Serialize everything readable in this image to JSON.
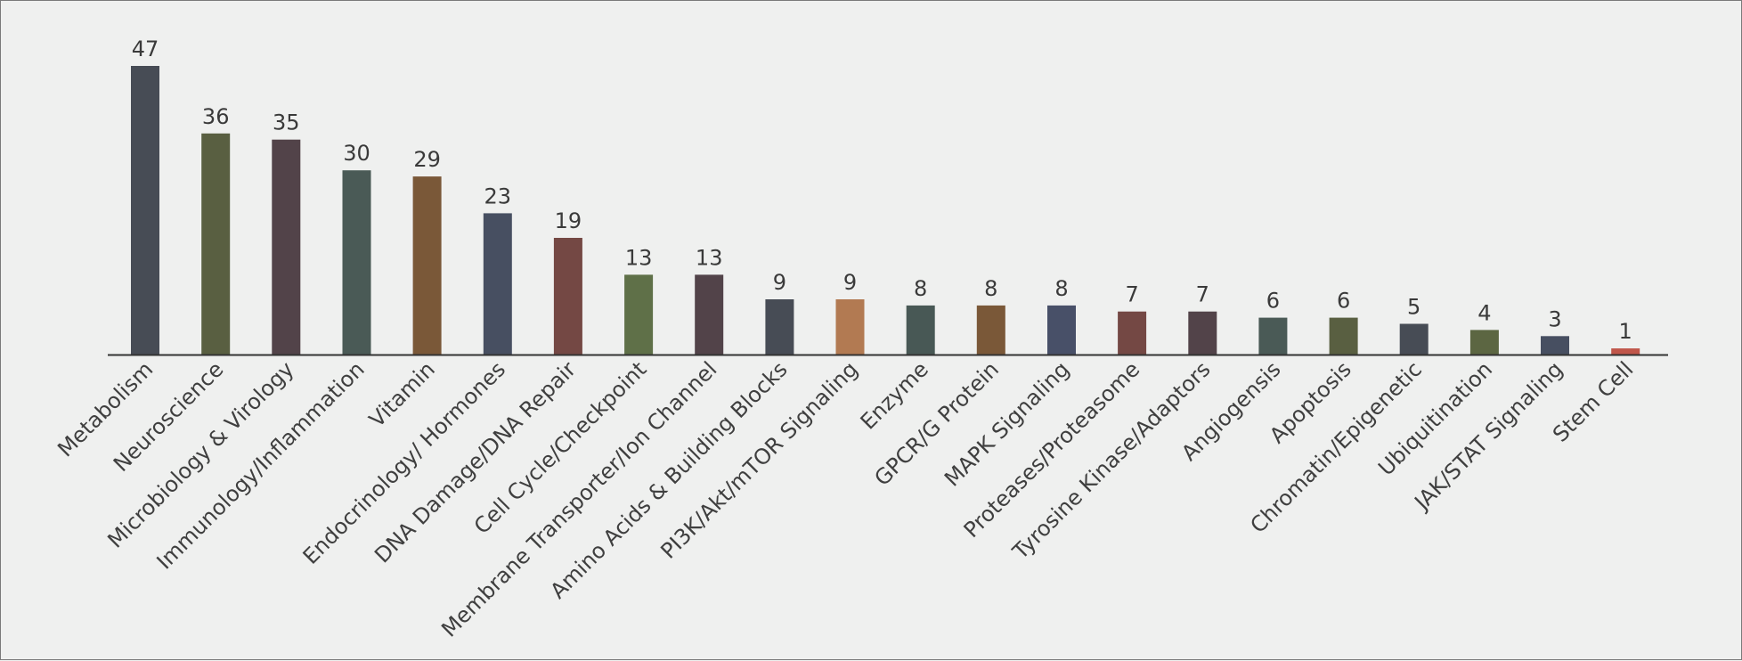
{
  "chart_data": {
    "type": "bar",
    "title": "",
    "xlabel": "",
    "ylabel": "",
    "ylim": [
      0,
      47
    ],
    "grid": false,
    "categories": [
      "Metabolism",
      "Neuroscience",
      "Microbiology & Virology",
      "Immunology/Inflammation",
      "Vitamin",
      "Endocrinology/ Hormones",
      "DNA Damage/DNA Repair",
      "Cell Cycle/Checkpoint",
      "Membrane Transporter/Ion Channel",
      "Amino Acids & Building Blocks",
      "PI3K/Akt/mTOR Signaling",
      "Enzyme",
      "GPCR/G Protein",
      "MAPK Signaling",
      "Proteases/Proteasome",
      "Tyrosine Kinase/Adaptors",
      "Angiogensis",
      "Apoptosis",
      "Chromatin/Epigenetic",
      "Ubiquitination",
      "JAK/STAT Signaling",
      "Stem Cell"
    ],
    "values": [
      47,
      36,
      35,
      30,
      29,
      23,
      19,
      13,
      13,
      9,
      9,
      8,
      8,
      8,
      7,
      7,
      6,
      6,
      5,
      4,
      3,
      1
    ],
    "colors": [
      "#474c55",
      "#595f41",
      "#524349",
      "#4a5a56",
      "#7a5838",
      "#474f61",
      "#744844",
      "#5f7048",
      "#524349",
      "#474c55",
      "#b27a52",
      "#485855",
      "#7a5838",
      "#485068",
      "#744844",
      "#524349",
      "#4a5a56",
      "#595f41",
      "#474c55",
      "#5c6642",
      "#474f61",
      "#c0564a"
    ],
    "axis_color": "#333333"
  }
}
